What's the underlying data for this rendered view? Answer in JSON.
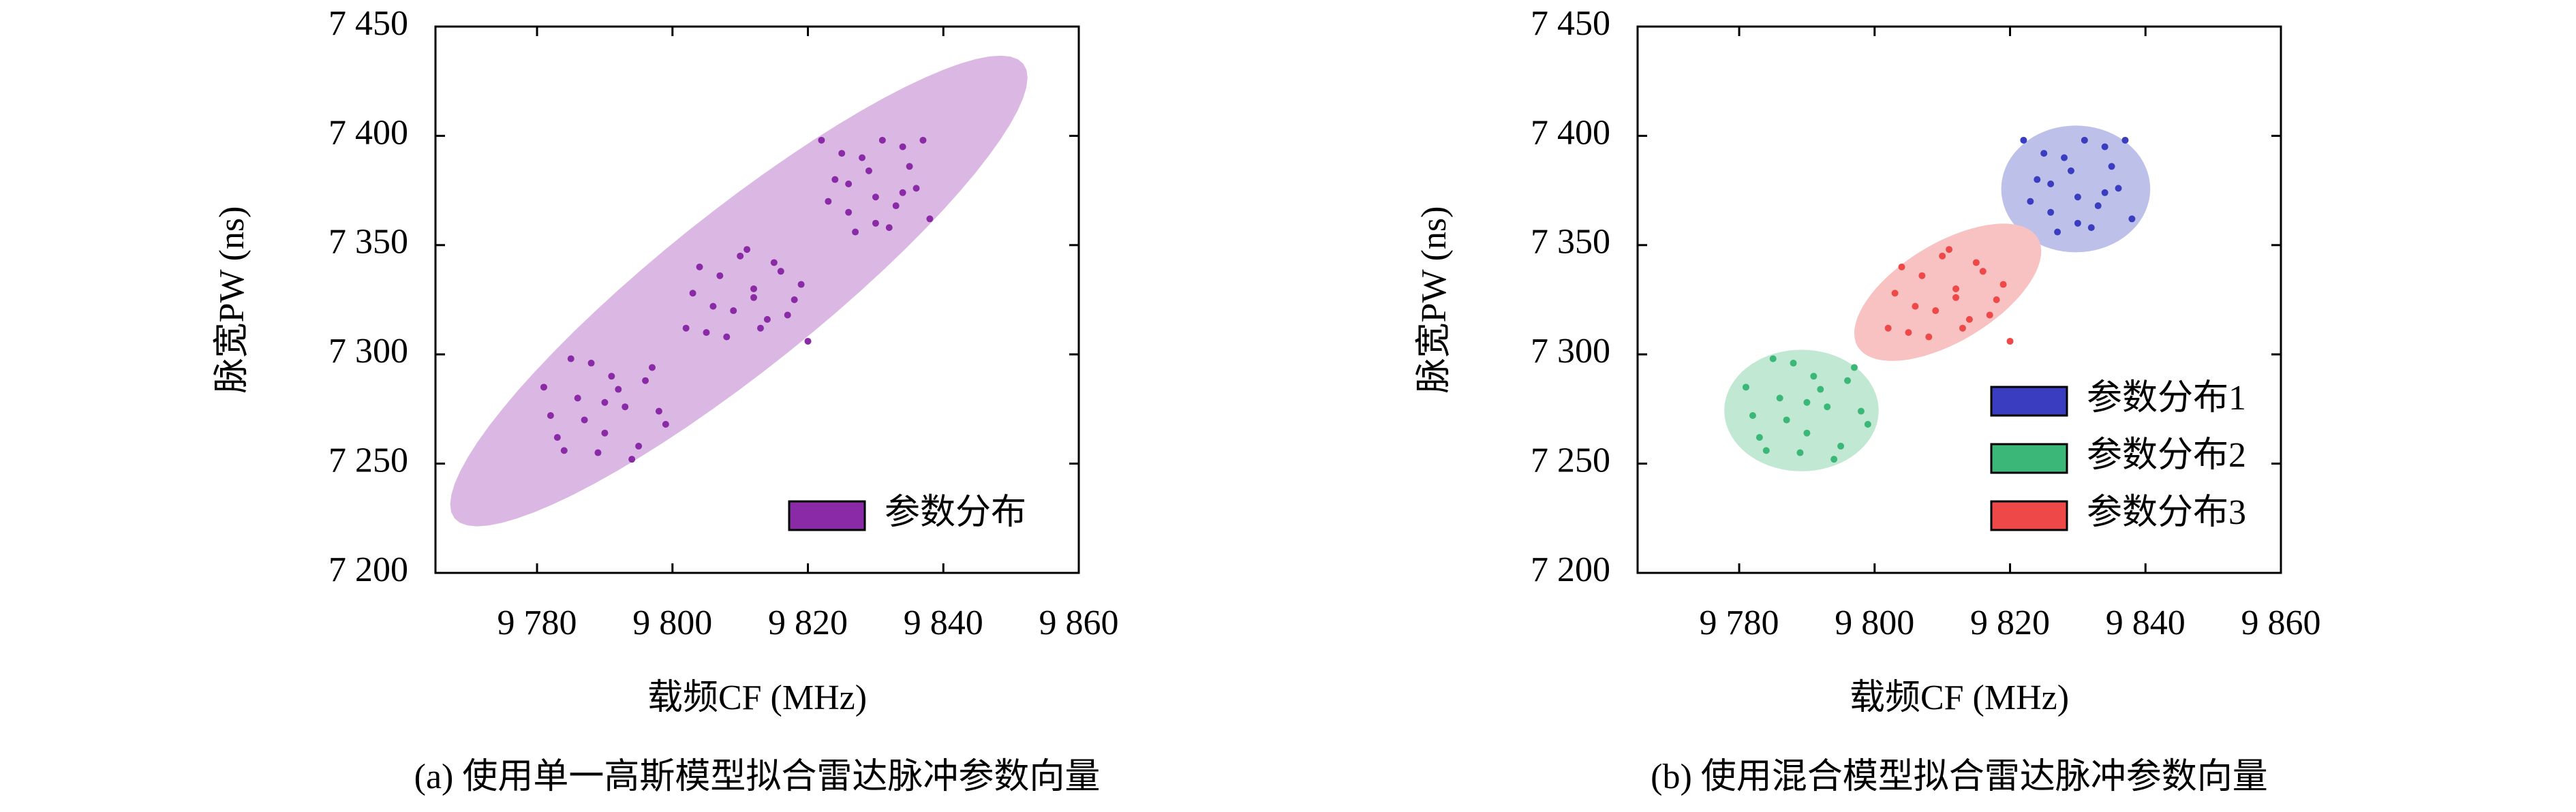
{
  "chart_data": [
    {
      "type": "scatter",
      "caption": "(a) 使用单一高斯模型拟合雷达脉冲参数向量",
      "xlabel": "载频CF (MHz)",
      "ylabel": "脉宽PW (ns)",
      "xlim": [
        9765,
        9860
      ],
      "ylim": [
        7200,
        7450
      ],
      "xticks": [
        {
          "value": 9780,
          "label": "9 780"
        },
        {
          "value": 9800,
          "label": "9 800"
        },
        {
          "value": 9820,
          "label": "9 820"
        },
        {
          "value": 9840,
          "label": "9 840"
        },
        {
          "value": 9860,
          "label": "9 860"
        }
      ],
      "yticks": [
        {
          "value": 7200,
          "label": "7 200"
        },
        {
          "value": 7250,
          "label": "7 250"
        },
        {
          "value": 7300,
          "label": "7 300"
        },
        {
          "value": 7350,
          "label": "7 350"
        },
        {
          "value": 7400,
          "label": "7 400"
        },
        {
          "value": 7450,
          "label": "7 450"
        }
      ],
      "legend": "lower right",
      "series": [
        {
          "name": "参数分布",
          "color": "#8a2aa6",
          "ellipse_color": "#dbb8e3",
          "ellipse": {
            "center": [
              9809.8,
              7329
            ],
            "axis1": [
              42,
              104
            ],
            "axis2": [
              7.3,
              -28
            ]
          },
          "x": [
            9822,
            9824,
            9826,
            9828,
            9830,
            9832,
            9834,
            9836,
            9838,
            9823,
            9825,
            9827,
            9829,
            9831,
            9833,
            9835,
            9837,
            9826,
            9830,
            9834,
            9802,
            9804,
            9806,
            9808,
            9810,
            9812,
            9814,
            9816,
            9818,
            9820,
            9803,
            9805,
            9807,
            9809,
            9811,
            9813,
            9815,
            9817,
            9819,
            9812,
            9781,
            9783,
            9785,
            9787,
            9789,
            9791,
            9793,
            9795,
            9797,
            9799,
            9782,
            9784,
            9786,
            9788,
            9790,
            9792,
            9794,
            9796,
            9798,
            9790
          ],
          "values": [
            7398,
            7380,
            7365,
            7390,
            7372,
            7358,
            7395,
            7376,
            7362,
            7370,
            7392,
            7356,
            7384,
            7398,
            7368,
            7386,
            7398,
            7378,
            7360,
            7374,
            7312,
            7340,
            7322,
            7308,
            7345,
            7330,
            7316,
            7338,
            7325,
            7306,
            7328,
            7310,
            7336,
            7320,
            7348,
            7312,
            7342,
            7318,
            7332,
            7326,
            7285,
            7262,
            7298,
            7270,
            7255,
            7290,
            7276,
            7258,
            7294,
            7268,
            7272,
            7256,
            7280,
            7296,
            7264,
            7284,
            7252,
            7288,
            7274,
            7278
          ]
        }
      ]
    },
    {
      "type": "scatter",
      "caption": "(b) 使用混合模型拟合雷达脉冲参数向量",
      "xlabel": "载频CF (MHz)",
      "ylabel": "脉宽PW (ns)",
      "xlim": [
        9765,
        9860
      ],
      "ylim": [
        7200,
        7450
      ],
      "xticks": [
        {
          "value": 9780,
          "label": "9 780"
        },
        {
          "value": 9800,
          "label": "9 800"
        },
        {
          "value": 9820,
          "label": "9 820"
        },
        {
          "value": 9840,
          "label": "9 840"
        },
        {
          "value": 9860,
          "label": "9 860"
        }
      ],
      "yticks": [
        {
          "value": 7200,
          "label": "7 200"
        },
        {
          "value": 7250,
          "label": "7 250"
        },
        {
          "value": 7300,
          "label": "7 300"
        },
        {
          "value": 7350,
          "label": "7 350"
        },
        {
          "value": 7400,
          "label": "7 400"
        },
        {
          "value": 7450,
          "label": "7 450"
        }
      ],
      "legend": "lower right",
      "series": [
        {
          "name": "参数分布1",
          "color": "#3a3dbf",
          "ellipse_color": "#bdc0e8",
          "ellipse": {
            "center": [
              9829.7,
              7375.7
            ],
            "axis1": [
              11,
              0
            ],
            "axis2": [
              0,
              29
            ]
          },
          "x": [
            9822,
            9824,
            9826,
            9828,
            9830,
            9832,
            9834,
            9836,
            9838,
            9823,
            9825,
            9827,
            9829,
            9831,
            9833,
            9835,
            9837,
            9826,
            9830,
            9834
          ],
          "values": [
            7398,
            7380,
            7365,
            7390,
            7372,
            7358,
            7395,
            7376,
            7362,
            7370,
            7392,
            7356,
            7384,
            7398,
            7368,
            7386,
            7398,
            7378,
            7360,
            7374
          ]
        },
        {
          "name": "参数分布2",
          "color": "#3bb777",
          "ellipse_color": "#c0e8d2",
          "ellipse": {
            "center": [
              9789.2,
              7274.3
            ],
            "axis1": [
              11.4,
              0
            ],
            "axis2": [
              0,
              -27.8
            ]
          },
          "x": [
            9781,
            9783,
            9785,
            9787,
            9789,
            9791,
            9793,
            9795,
            9797,
            9799,
            9782,
            9784,
            9786,
            9788,
            9790,
            9792,
            9794,
            9796,
            9798,
            9790
          ],
          "values": [
            7285,
            7262,
            7298,
            7270,
            7255,
            7290,
            7276,
            7258,
            7294,
            7268,
            7272,
            7256,
            7280,
            7296,
            7264,
            7284,
            7252,
            7288,
            7274,
            7278
          ]
        },
        {
          "name": "参数分布3",
          "color": "#ef4848",
          "ellipse_color": "#f8c2c2",
          "ellipse": {
            "center": [
              9810.8,
              7328.4
            ],
            "axis1": [
              13.3,
              24.8
            ],
            "axis2": [
              3.7,
              -19.3
            ]
          },
          "x": [
            9802,
            9804,
            9806,
            9808,
            9810,
            9812,
            9814,
            9816,
            9818,
            9820,
            9803,
            9805,
            9807,
            9809,
            9811,
            9813,
            9815,
            9817,
            9819,
            9812
          ],
          "values": [
            7312,
            7340,
            7322,
            7308,
            7345,
            7330,
            7316,
            7338,
            7325,
            7306,
            7328,
            7310,
            7336,
            7320,
            7348,
            7312,
            7342,
            7318,
            7332,
            7326
          ]
        }
      ]
    }
  ]
}
